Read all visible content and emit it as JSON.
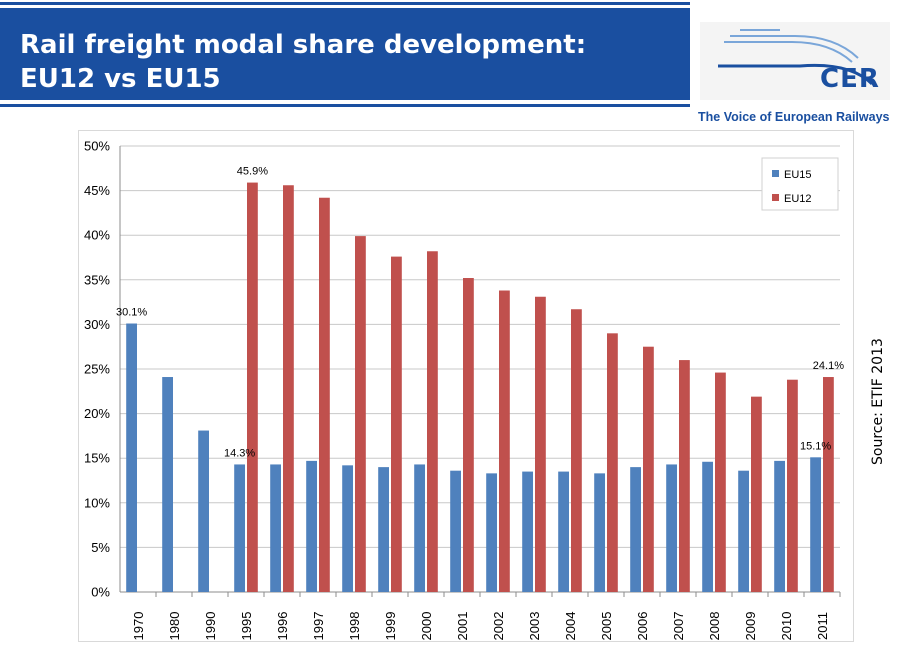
{
  "header": {
    "title": "Rail freight modal share development: EU12 vs EU15",
    "logo_text": "CER",
    "tagline": "The Voice of European Railways",
    "color": "#1a4fa0"
  },
  "source_note": "Source: ETIF 2013",
  "chart_data": {
    "type": "bar",
    "categories": [
      "1970",
      "1980",
      "1990",
      "1995",
      "1996",
      "1997",
      "1998",
      "1999",
      "2000",
      "2001",
      "2002",
      "2003",
      "2004",
      "2005",
      "2006",
      "2007",
      "2008",
      "2009",
      "2010",
      "2011"
    ],
    "series": [
      {
        "name": "EU15",
        "color": "#4f81bd",
        "values": [
          30.1,
          24.1,
          18.1,
          14.3,
          14.3,
          14.7,
          14.2,
          14.0,
          14.3,
          13.6,
          13.3,
          13.5,
          13.5,
          13.3,
          14.0,
          14.3,
          14.6,
          13.6,
          14.7,
          15.1
        ]
      },
      {
        "name": "EU12",
        "color": "#c0504d",
        "values": [
          null,
          null,
          null,
          45.9,
          45.6,
          44.2,
          39.9,
          37.6,
          38.2,
          35.2,
          33.8,
          33.1,
          31.7,
          29.0,
          27.5,
          26.0,
          24.6,
          21.9,
          23.8,
          24.1
        ]
      }
    ],
    "yticks": [
      "0%",
      "5%",
      "10%",
      "15%",
      "20%",
      "25%",
      "30%",
      "35%",
      "40%",
      "45%",
      "50%"
    ],
    "ylim": [
      0,
      50
    ],
    "grid": true,
    "legend_position": "top-right",
    "data_labels": [
      {
        "series": 0,
        "index": 0,
        "text": "30.1%"
      },
      {
        "series": 1,
        "index": 3,
        "text": "45.9%"
      },
      {
        "series": 0,
        "index": 3,
        "text": "14.3%"
      },
      {
        "series": 0,
        "index": 19,
        "text": "15.1%"
      },
      {
        "series": 1,
        "index": 19,
        "text": "24.1%"
      }
    ]
  }
}
